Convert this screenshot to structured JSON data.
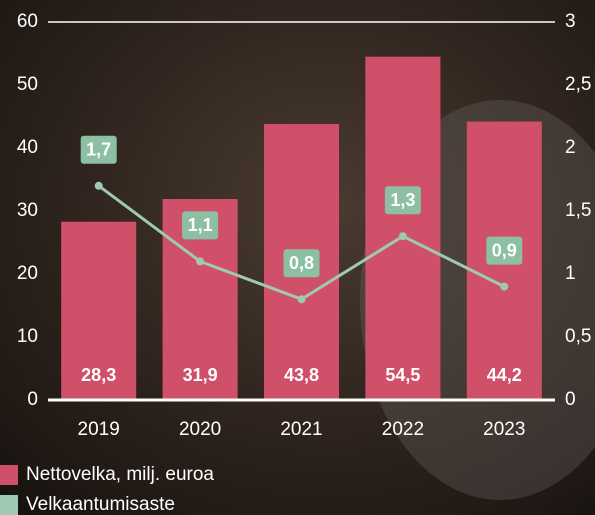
{
  "chart_data": {
    "type": "bar_line",
    "categories": [
      "2019",
      "2020",
      "2021",
      "2022",
      "2023"
    ],
    "series": [
      {
        "name": "Nettovelka, milj. euroa",
        "color": "#d0506a",
        "type": "bar",
        "values": [
          28.3,
          31.9,
          43.8,
          54.5,
          44.2
        ],
        "value_labels": [
          "28,3",
          "31,9",
          "43,8",
          "54,5",
          "44,2"
        ]
      },
      {
        "name": "Velkaantumisaste",
        "color": "#9fc9b1",
        "type": "line",
        "axis": "y2",
        "values": [
          1.7,
          1.1,
          0.8,
          1.3,
          0.9
        ],
        "value_labels": [
          "1,7",
          "1,1",
          "0,8",
          "1,3",
          "0,9"
        ]
      }
    ],
    "ylim": [
      0,
      60
    ],
    "yticks": [
      0,
      10,
      20,
      30,
      40,
      50,
      60
    ],
    "y2lim": [
      0,
      3
    ],
    "y2ticks": [
      0,
      {
        "value": 0.5,
        "label": "0,5"
      },
      1,
      {
        "value": 1.5,
        "label": "1,5"
      },
      2,
      {
        "value": 2.5,
        "label": "2,5"
      },
      3
    ]
  }
}
